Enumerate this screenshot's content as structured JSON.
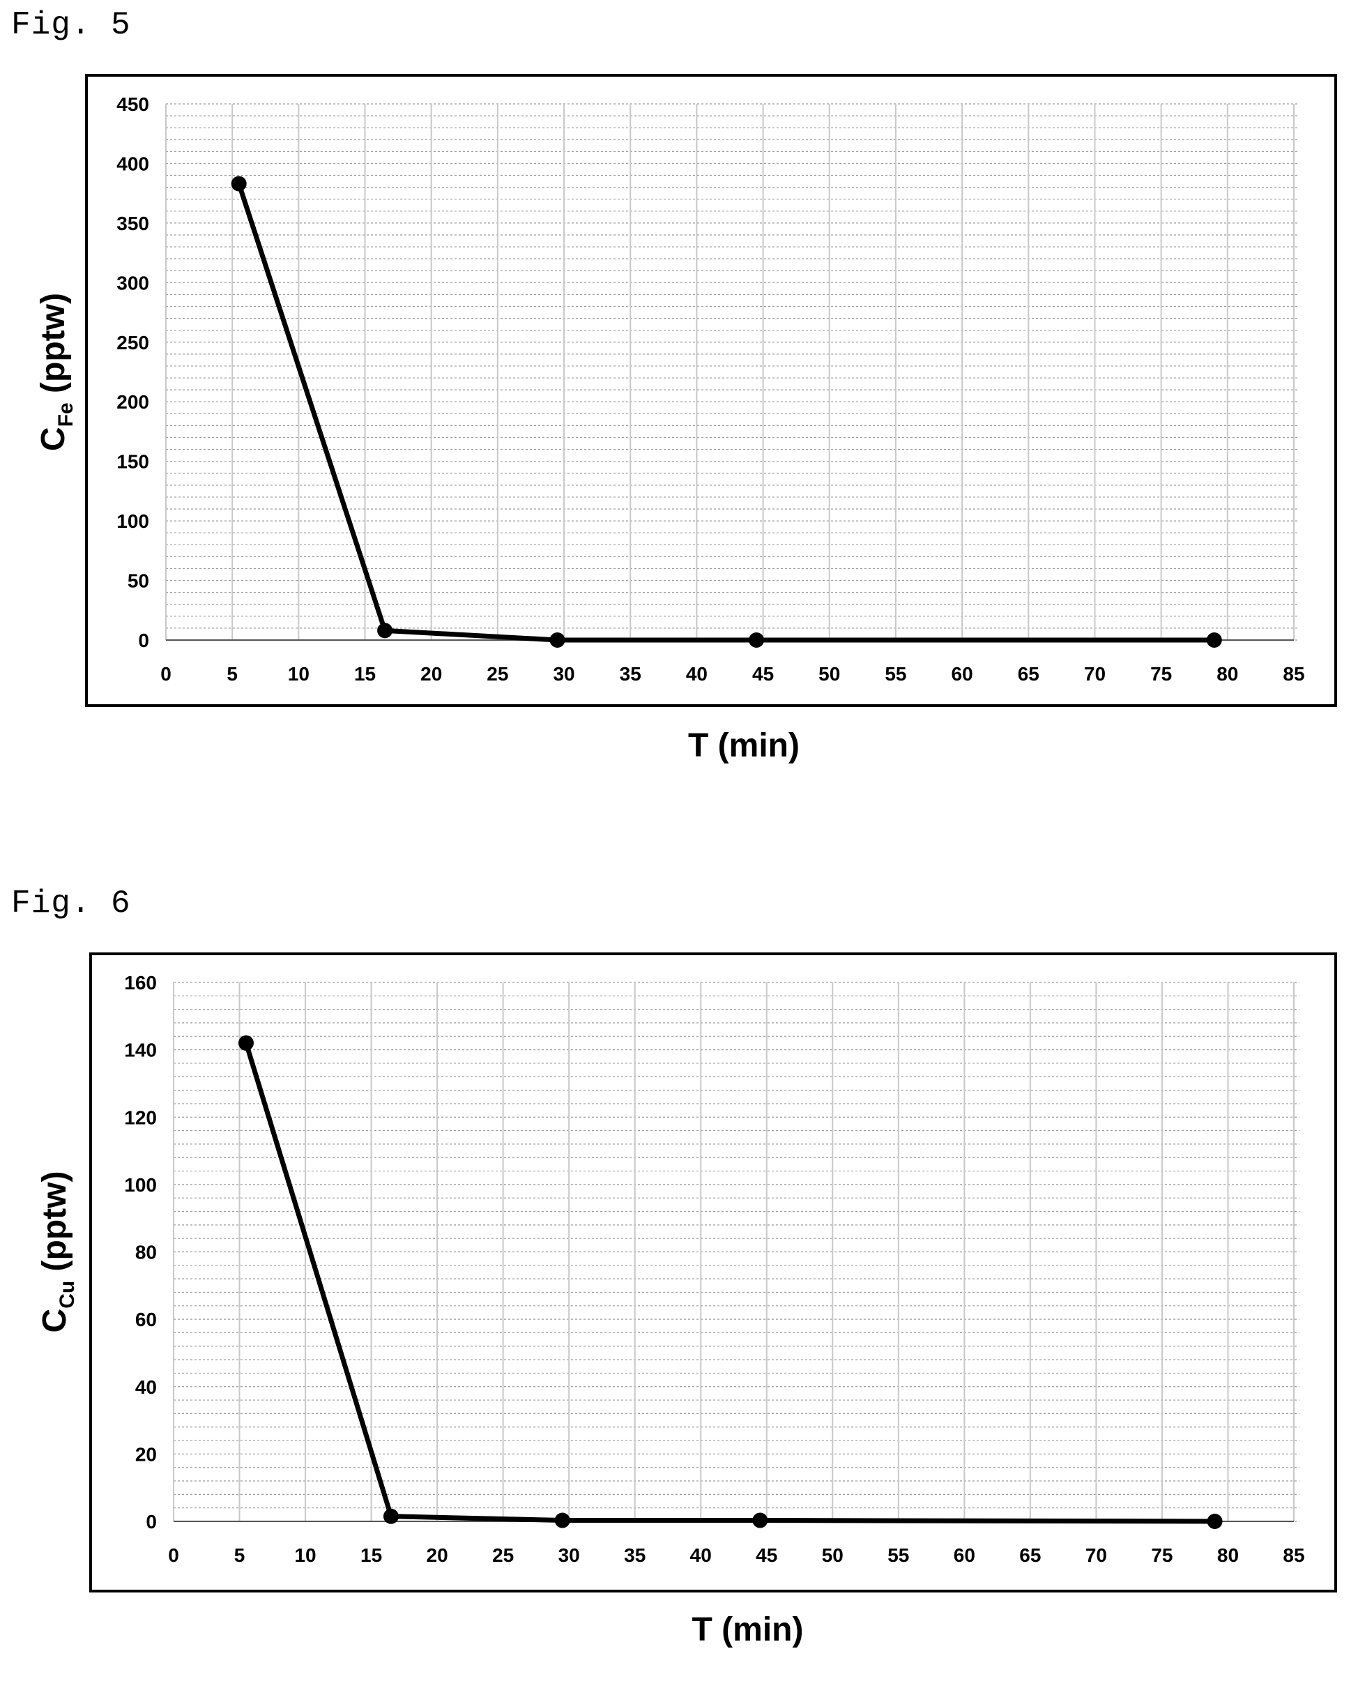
{
  "figures": [
    {
      "label": "Fig. 5"
    },
    {
      "label": "Fig. 6"
    }
  ],
  "chart_data": [
    {
      "type": "line",
      "title": "",
      "xlabel": "T (min)",
      "ylabel_main": "C",
      "ylabel_sub": "Fe",
      "ylabel_unit": " (pptw)",
      "xlim": [
        0,
        85
      ],
      "ylim": [
        0,
        450
      ],
      "x_ticks": [
        0,
        5,
        10,
        15,
        20,
        25,
        30,
        35,
        40,
        45,
        50,
        55,
        60,
        65,
        70,
        75,
        80,
        85
      ],
      "y_ticks": [
        0,
        50,
        100,
        150,
        200,
        250,
        300,
        350,
        400,
        450
      ],
      "grid": true,
      "series": [
        {
          "x": [
            5.5,
            16.5,
            29.5,
            44.5,
            79
          ],
          "values": [
            383,
            8,
            0,
            0,
            0
          ]
        }
      ],
      "colors": {
        "line": "#000000",
        "grid": "#9a9a9a",
        "frame": "#000000"
      }
    },
    {
      "type": "line",
      "title": "",
      "xlabel": "T (min)",
      "ylabel_main": "C",
      "ylabel_sub": "Cu",
      "ylabel_unit": " (pptw)",
      "xlim": [
        0,
        85
      ],
      "ylim": [
        0,
        160
      ],
      "x_ticks": [
        0,
        5,
        10,
        15,
        20,
        25,
        30,
        35,
        40,
        45,
        50,
        55,
        60,
        65,
        70,
        75,
        80,
        85
      ],
      "y_ticks": [
        0,
        20,
        40,
        60,
        80,
        100,
        120,
        140,
        160
      ],
      "grid": true,
      "series": [
        {
          "x": [
            5.5,
            16.5,
            29.5,
            44.5,
            79
          ],
          "values": [
            142,
            1.5,
            0.3,
            0.3,
            0
          ]
        }
      ],
      "colors": {
        "line": "#000000",
        "grid": "#9a9a9a",
        "frame": "#000000"
      }
    }
  ]
}
